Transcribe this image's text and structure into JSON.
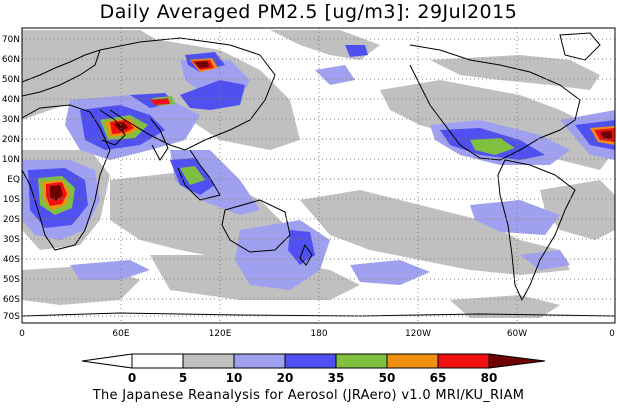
{
  "title": "Daily Averaged PM2.5 [ug/m3]: 29Jul2015",
  "footer": "The Japanese Reanalysis for Aerosol (JRAero) v1.0 MRI/KU_RIAM",
  "lat_labels": [
    "70N",
    "60N",
    "50N",
    "40N",
    "30N",
    "20N",
    "10N",
    "EQ",
    "10S",
    "20S",
    "30S",
    "40S",
    "50S",
    "60S",
    "70S"
  ],
  "lon_labels": [
    "0",
    "60E",
    "120E",
    "180",
    "120W",
    "60W",
    "0"
  ],
  "colorbar": {
    "tick_labels": [
      "0",
      "5",
      "10",
      "20",
      "35",
      "50",
      "65",
      "80"
    ],
    "colors": [
      "#ffffff",
      "#c0c0c0",
      "#a0a0f0",
      "#5050f0",
      "#80c040",
      "#f09010",
      "#f01010",
      "#700000"
    ]
  },
  "legend_colors": {
    "gray": "#c0c0c0",
    "light_blue": "#a0a0f0",
    "blue": "#5050f0",
    "green": "#80c040",
    "orange": "#f09010",
    "red": "#f01010",
    "dark_red": "#700000"
  }
}
